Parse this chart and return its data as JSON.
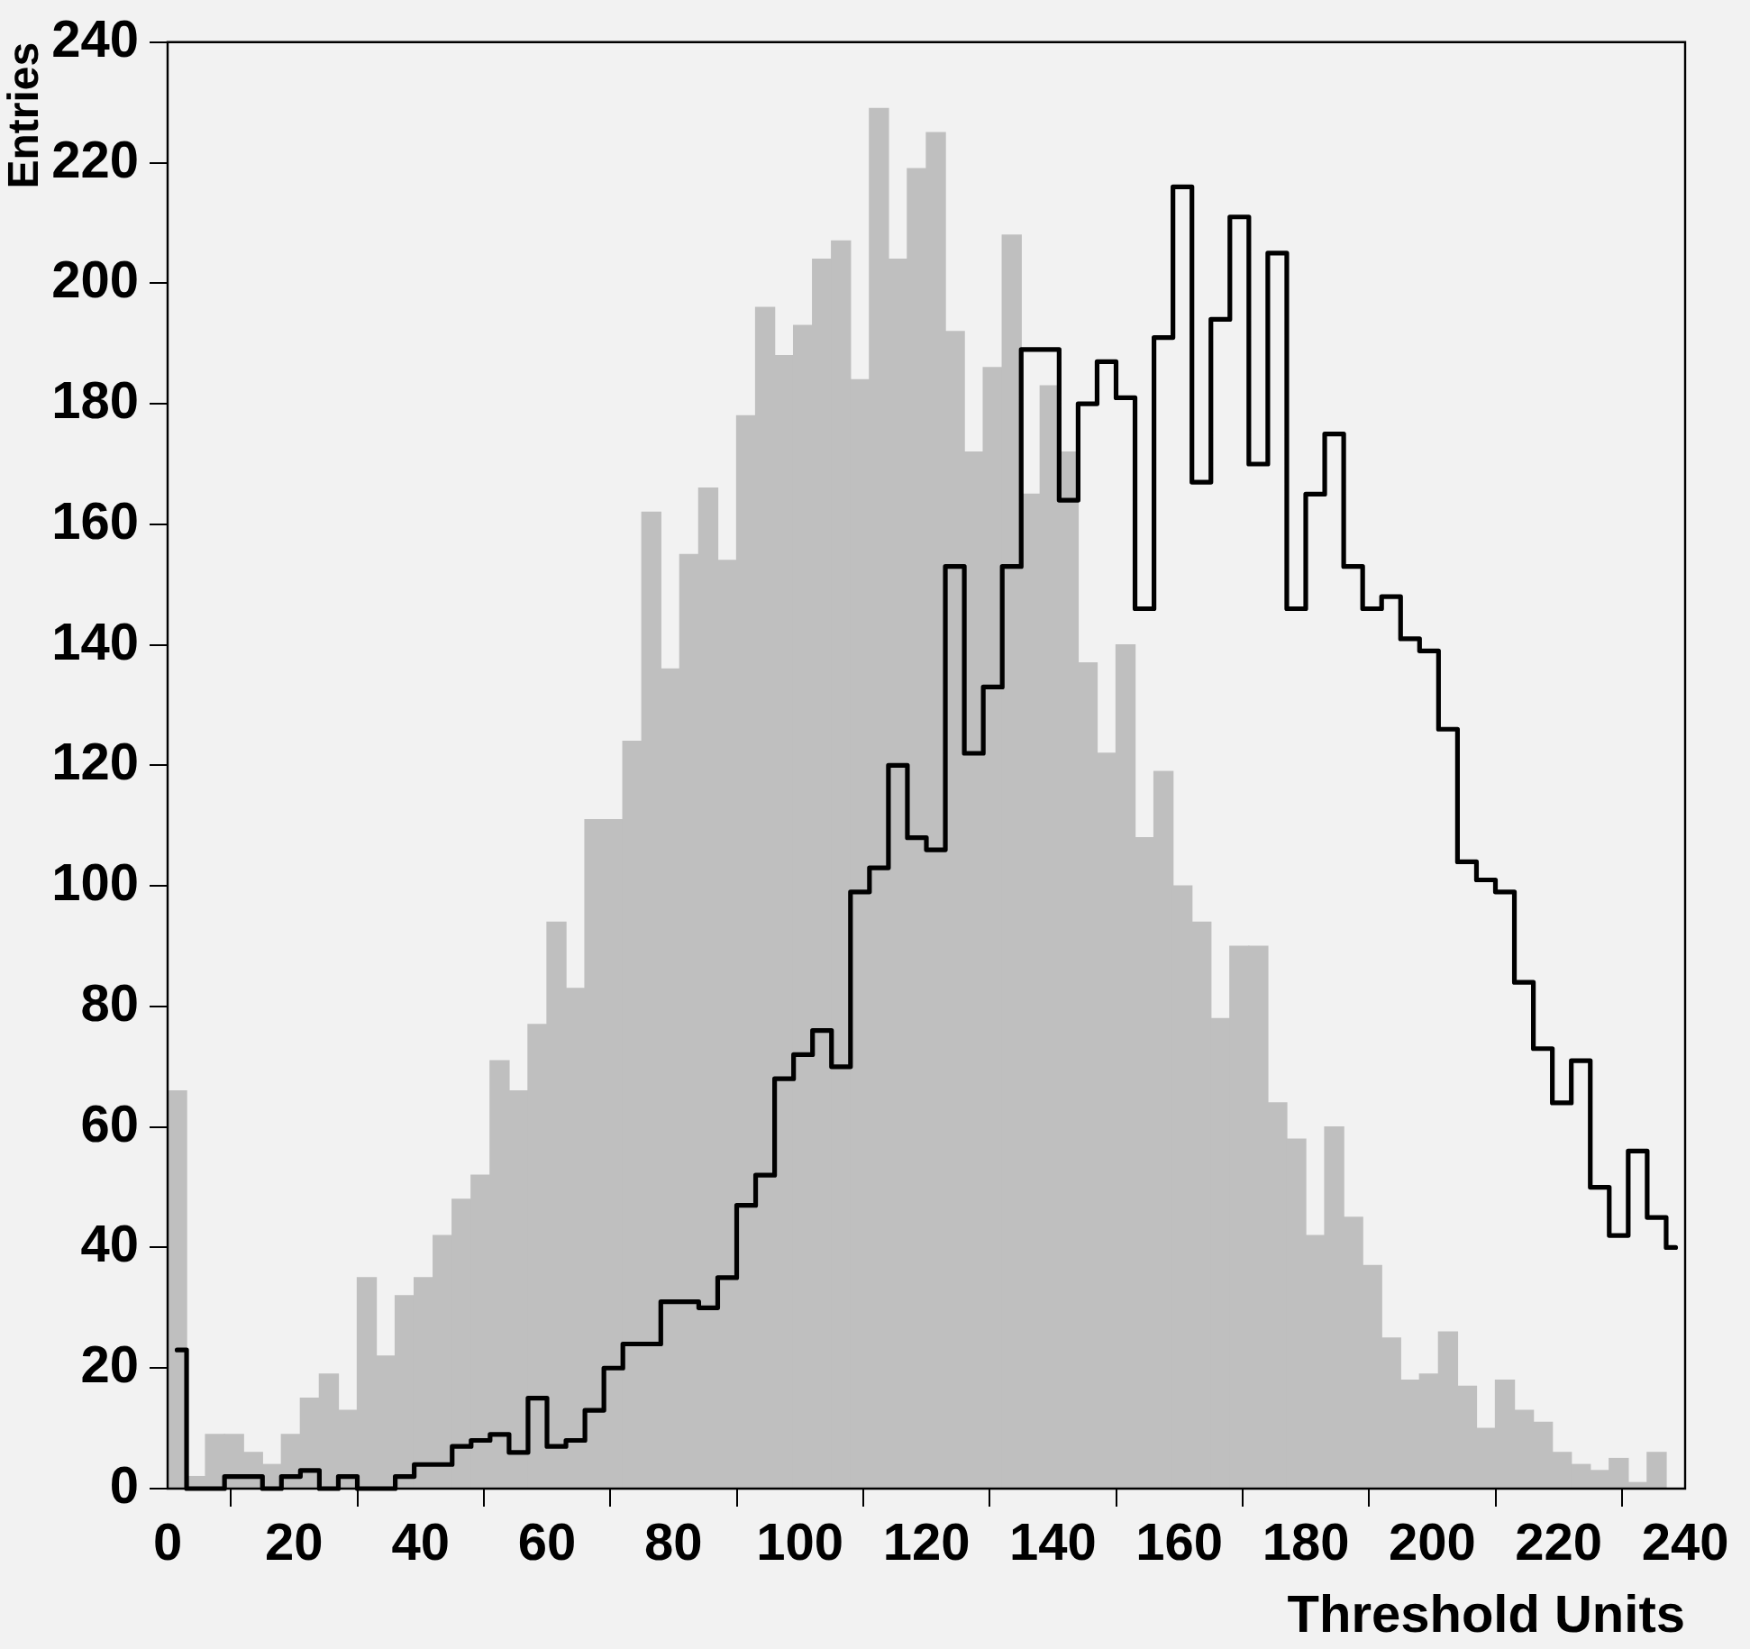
{
  "chart_data": {
    "type": "histogram",
    "xlabel": "Threshold Units",
    "ylabel": "Entries",
    "bins": [
      0,
      3,
      6,
      9,
      12,
      15,
      18,
      21,
      24,
      27,
      30,
      33,
      36,
      39,
      42,
      45,
      48,
      51,
      54,
      57,
      60,
      63,
      66,
      69,
      72,
      75,
      78,
      81,
      84,
      87,
      90,
      93,
      96,
      99,
      102,
      105,
      108,
      111,
      114,
      117,
      120,
      123,
      126,
      129,
      132,
      135,
      138,
      141,
      144,
      147,
      150,
      153,
      156,
      159,
      162,
      165,
      168,
      171,
      174,
      177,
      180,
      183,
      186,
      189,
      192,
      195,
      198,
      201,
      204,
      207,
      210,
      213,
      216,
      219,
      222,
      225,
      228,
      231,
      234,
      237,
      240
    ],
    "series": [
      {
        "type": "histogram",
        "color": "#bfbfbf",
        "values": [
          66,
          2,
          9,
          9,
          6,
          4,
          9,
          15,
          19,
          13,
          35,
          22,
          32,
          35,
          42,
          48,
          52,
          71,
          66,
          77,
          94,
          83,
          111,
          111,
          124,
          162,
          136,
          155,
          166,
          154,
          178,
          196,
          188,
          193,
          204,
          207,
          184,
          229,
          204,
          219,
          225,
          192,
          172,
          186,
          208,
          165,
          183,
          172,
          137,
          122,
          140,
          108,
          119,
          100,
          94,
          78,
          90,
          90,
          64,
          58,
          42,
          60,
          45,
          37,
          25,
          18,
          19,
          26,
          17,
          10,
          18,
          13,
          11,
          6,
          4,
          3,
          5,
          1,
          6,
          0
        ]
      },
      {
        "type": "step",
        "color": "#000000",
        "x": [
          1.5,
          4.5,
          7.5,
          10.5,
          13.5,
          16.5,
          19.5,
          22.5,
          25.5,
          28.5,
          31.5,
          34.5,
          37.5,
          40.5,
          43.5,
          46.5,
          49.5,
          52.5,
          55.5,
          58.5,
          61.5,
          64.5,
          67.5,
          70.5,
          73.5,
          76.5,
          79.5,
          82.5,
          85.5,
          88.5,
          91.5,
          94.5,
          97.5,
          100.5,
          103.5,
          106.5,
          109.5,
          112.5,
          115.5,
          118.5,
          121.5,
          124.5,
          127.5,
          130.5,
          133.5,
          136.5,
          139.5,
          142.5,
          145.5,
          148.5,
          151.5,
          154.5,
          157.5,
          160.5,
          163.5,
          166.5,
          169.5,
          172.5,
          175.5,
          178.5,
          181.5,
          184.5,
          187.5,
          190.5,
          193.5,
          196.5,
          199.5,
          202.5,
          205.5,
          208.5,
          211.5,
          214.5,
          217.5,
          220.5,
          223.5,
          226.5,
          229.5,
          232.5,
          235.5,
          238.5
        ],
        "values": [
          23,
          0,
          0,
          2,
          2,
          0,
          2,
          3,
          0,
          2,
          0,
          0,
          2,
          4,
          4,
          7,
          8,
          9,
          6,
          15,
          7,
          8,
          13,
          20,
          24,
          24,
          31,
          31,
          30,
          35,
          47,
          52,
          68,
          72,
          76,
          70,
          99,
          103,
          120,
          108,
          106,
          153,
          122,
          133,
          153,
          189,
          189,
          164,
          180,
          187,
          181,
          146,
          191,
          216,
          167,
          194,
          211,
          170,
          205,
          146,
          165,
          175,
          153,
          146,
          148,
          141,
          139,
          126,
          104,
          101,
          99,
          84,
          73,
          64,
          71,
          50,
          42,
          56,
          45,
          40
        ]
      }
    ],
    "xlim": [
      0,
      240
    ],
    "xticks": [
      0,
      20,
      40,
      60,
      80,
      100,
      120,
      140,
      160,
      180,
      200,
      220,
      240
    ],
    "ylim": [
      0,
      240
    ],
    "yticks": [
      0,
      20,
      40,
      60,
      80,
      100,
      120,
      140,
      160,
      180,
      200,
      220,
      240
    ],
    "grid": false,
    "legend": false
  }
}
